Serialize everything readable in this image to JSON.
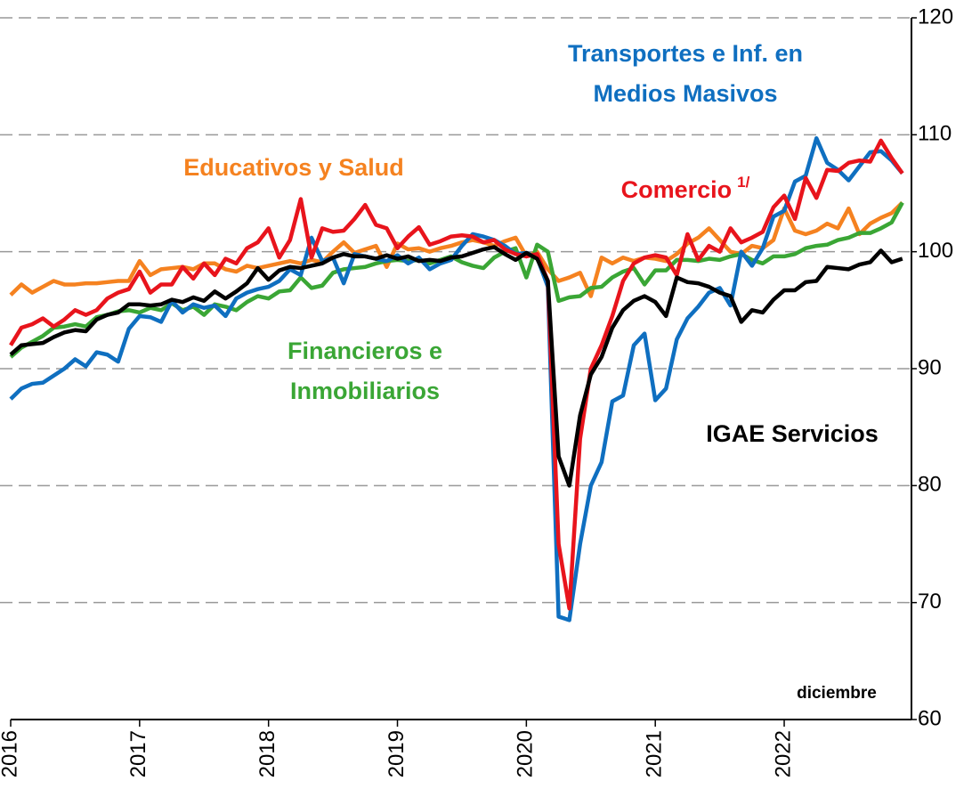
{
  "chart_data": {
    "type": "line",
    "annotation": "diciembre",
    "categories": [
      "2016",
      null,
      null,
      null,
      null,
      null,
      null,
      null,
      null,
      null,
      null,
      null,
      "2017",
      null,
      null,
      null,
      null,
      null,
      null,
      null,
      null,
      null,
      null,
      null,
      "2018",
      null,
      null,
      null,
      null,
      null,
      null,
      null,
      null,
      null,
      null,
      null,
      "2019",
      null,
      null,
      null,
      null,
      null,
      null,
      null,
      null,
      null,
      null,
      null,
      "2020",
      null,
      null,
      null,
      null,
      null,
      null,
      null,
      null,
      null,
      null,
      null,
      "2021",
      null,
      null,
      null,
      null,
      null,
      null,
      null,
      null,
      null,
      null,
      null,
      "2022",
      null,
      null,
      null,
      null,
      null,
      null,
      null,
      null,
      null,
      null,
      null
    ],
    "ylim": [
      60,
      120
    ],
    "yticks": [
      60,
      70,
      80,
      90,
      100,
      110,
      120
    ],
    "grid": true,
    "series": [
      {
        "name": "Educativos y Salud",
        "color": "#f58220",
        "values": [
          96.3,
          97.2,
          96.5,
          97.0,
          97.5,
          97.2,
          97.2,
          97.3,
          97.3,
          97.4,
          97.5,
          97.5,
          99.2,
          98.0,
          98.5,
          98.6,
          98.7,
          98.5,
          99.0,
          99.0,
          98.5,
          98.3,
          98.8,
          98.6,
          98.8,
          99.0,
          99.2,
          99.0,
          99.3,
          99.1,
          100.0,
          100.8,
          99.9,
          100.2,
          100.5,
          98.7,
          100.7,
          100.2,
          100.3,
          100.0,
          100.3,
          100.5,
          100.8,
          101.0,
          100.8,
          100.5,
          100.9,
          101.2,
          99.6,
          100.0,
          98.5,
          97.5,
          97.8,
          98.2,
          96.2,
          99.5,
          99.0,
          99.5,
          99.2,
          99.5,
          99.4,
          99.2,
          99.8,
          100.7,
          101.2,
          102.0,
          101.0,
          100.0,
          99.8,
          100.5,
          100.3,
          101.0,
          103.7,
          101.8,
          101.5,
          101.8,
          102.4,
          102.0,
          103.7,
          101.5,
          102.4,
          102.9,
          103.3,
          104.2
        ]
      },
      {
        "name": "Financieros e Inmobiliarios",
        "color": "#3aa635",
        "values": [
          91.0,
          91.8,
          92.3,
          92.8,
          93.5,
          93.6,
          93.8,
          93.6,
          94.4,
          94.6,
          94.9,
          95.0,
          94.8,
          95.2,
          95.0,
          95.6,
          95.0,
          95.3,
          94.6,
          95.5,
          95.3,
          95.0,
          95.7,
          96.2,
          96.0,
          96.6,
          96.7,
          97.8,
          96.9,
          97.1,
          98.2,
          98.5,
          98.6,
          98.7,
          99.0,
          99.2,
          99.3,
          99.2,
          99.3,
          99.0,
          99.3,
          99.6,
          99.1,
          98.8,
          98.6,
          99.5,
          100.0,
          100.3,
          97.8,
          100.6,
          100.0,
          95.8,
          96.1,
          96.2,
          96.9,
          97.0,
          97.8,
          98.3,
          98.6,
          97.2,
          98.4,
          98.4,
          99.3,
          99.3,
          99.2,
          99.4,
          99.3,
          99.6,
          99.8,
          99.3,
          99.0,
          99.6,
          99.6,
          99.8,
          100.3,
          100.5,
          100.6,
          101.0,
          101.2,
          101.6,
          101.6,
          102.0,
          102.5,
          104.2
        ]
      },
      {
        "name": "Transportes e Inf. en Medios Masivos",
        "color": "#0f6fc0",
        "values": [
          87.4,
          88.3,
          88.7,
          88.8,
          89.4,
          90.0,
          90.8,
          90.2,
          91.4,
          91.2,
          90.6,
          93.4,
          94.5,
          94.4,
          94.0,
          95.8,
          94.8,
          95.5,
          95.2,
          95.4,
          94.5,
          96.0,
          96.5,
          96.8,
          97.0,
          97.5,
          98.5,
          98.0,
          101.2,
          99.2,
          99.5,
          97.3,
          99.8,
          99.6,
          99.4,
          99.2,
          99.7,
          99.0,
          99.5,
          98.5,
          99.0,
          99.3,
          100.5,
          101.5,
          101.3,
          101.0,
          100.5,
          99.8,
          99.9,
          99.5,
          97.0,
          68.8,
          68.5,
          75.0,
          80.0,
          82.0,
          87.2,
          87.7,
          92.0,
          93.0,
          87.3,
          88.3,
          92.5,
          94.3,
          95.3,
          96.5,
          96.9,
          95.4,
          100.0,
          98.8,
          100.3,
          103.0,
          103.5,
          106.0,
          106.5,
          109.7,
          107.6,
          107.0,
          106.1,
          107.3,
          108.5,
          108.6,
          107.8,
          106.7
        ]
      },
      {
        "name": "Comercio",
        "name_note": "1/",
        "color": "#e8141c",
        "values": [
          92.0,
          93.5,
          93.8,
          94.3,
          93.6,
          94.2,
          95.0,
          94.6,
          95.0,
          96.0,
          96.5,
          96.8,
          98.3,
          96.5,
          97.2,
          97.2,
          98.7,
          97.7,
          99.0,
          98.0,
          99.4,
          99.0,
          100.3,
          100.8,
          102.0,
          99.5,
          101.0,
          104.5,
          99.5,
          102.0,
          101.7,
          101.8,
          102.8,
          104.0,
          102.3,
          102.0,
          100.3,
          101.3,
          102.1,
          100.6,
          100.9,
          101.3,
          101.4,
          101.3,
          100.8,
          101.0,
          100.2,
          99.8,
          99.6,
          99.8,
          97.5,
          75.0,
          69.5,
          84.0,
          90.0,
          92.0,
          94.5,
          97.5,
          99.0,
          99.5,
          99.7,
          99.5,
          98.0,
          101.5,
          99.3,
          100.5,
          100.0,
          102.0,
          100.8,
          101.2,
          101.7,
          103.8,
          104.8,
          102.8,
          106.3,
          104.6,
          107.0,
          106.9,
          107.6,
          107.8,
          107.7,
          109.5,
          108.0,
          106.7
        ]
      },
      {
        "name": "IGAE Servicios",
        "color": "#000000",
        "values": [
          91.2,
          92.0,
          92.1,
          92.2,
          92.7,
          93.1,
          93.3,
          93.2,
          94.2,
          94.6,
          94.8,
          95.5,
          95.5,
          95.4,
          95.5,
          95.9,
          95.7,
          96.1,
          95.8,
          96.6,
          96.0,
          96.6,
          97.3,
          98.6,
          97.6,
          98.4,
          98.7,
          98.6,
          98.8,
          99.0,
          99.5,
          99.8,
          99.6,
          99.6,
          99.4,
          99.7,
          99.4,
          99.6,
          99.2,
          99.3,
          99.2,
          99.5,
          99.6,
          99.9,
          100.2,
          100.4,
          99.8,
          99.3,
          99.9,
          99.4,
          97.5,
          82.5,
          80.0,
          86.0,
          89.5,
          91.0,
          93.5,
          95.0,
          95.8,
          96.2,
          95.7,
          94.5,
          97.8,
          97.4,
          97.3,
          97.0,
          96.5,
          96.2,
          94.0,
          95.0,
          94.8,
          95.9,
          96.7,
          96.7,
          97.4,
          97.5,
          98.7,
          98.6,
          98.5,
          98.9,
          99.1,
          100.1,
          99.1,
          99.4
        ]
      }
    ]
  }
}
